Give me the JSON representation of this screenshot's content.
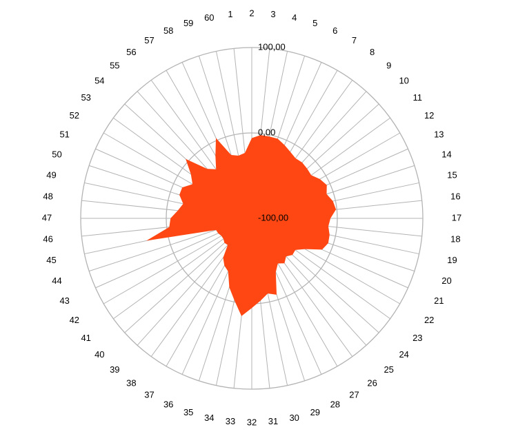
{
  "chart_data": {
    "type": "radar",
    "categories": [
      "1",
      "2",
      "3",
      "4",
      "5",
      "6",
      "7",
      "8",
      "9",
      "10",
      "11",
      "12",
      "13",
      "14",
      "15",
      "16",
      "17",
      "18",
      "19",
      "20",
      "21",
      "22",
      "23",
      "24",
      "25",
      "26",
      "27",
      "28",
      "29",
      "30",
      "31",
      "32",
      "33",
      "34",
      "35",
      "36",
      "37",
      "38",
      "39",
      "40",
      "41",
      "42",
      "43",
      "44",
      "45",
      "46",
      "47",
      "48",
      "49",
      "50",
      "51",
      "52",
      "53",
      "54",
      "55",
      "56",
      "57",
      "58",
      "59",
      "60"
    ],
    "series": [
      {
        "values": [
          -23,
          -6,
          -2,
          -2,
          -2,
          -6,
          -10,
          -13,
          -12,
          -13,
          -14,
          -8,
          -4,
          -8,
          -3,
          -1,
          -8,
          -10,
          -7,
          -6,
          -10,
          -28,
          -37,
          -36,
          -40,
          -35,
          -39,
          -31,
          -6,
          -10,
          -3,
          5,
          15,
          -2,
          -15,
          -32,
          -36,
          -43,
          -58,
          -57,
          -59,
          -59,
          -57,
          -56,
          26,
          -3,
          -5,
          -13,
          -18,
          -11,
          -11,
          -20,
          -12,
          4,
          -22,
          -29,
          -15,
          3,
          -22,
          -25
        ],
        "color": "#ff4713"
      }
    ],
    "ylim": [
      -100,
      100
    ],
    "ticks": [
      "100,00",
      "0,00",
      "-100,00"
    ],
    "tick_values": [
      100,
      0,
      -100
    ],
    "grid": true,
    "legend": "none"
  }
}
